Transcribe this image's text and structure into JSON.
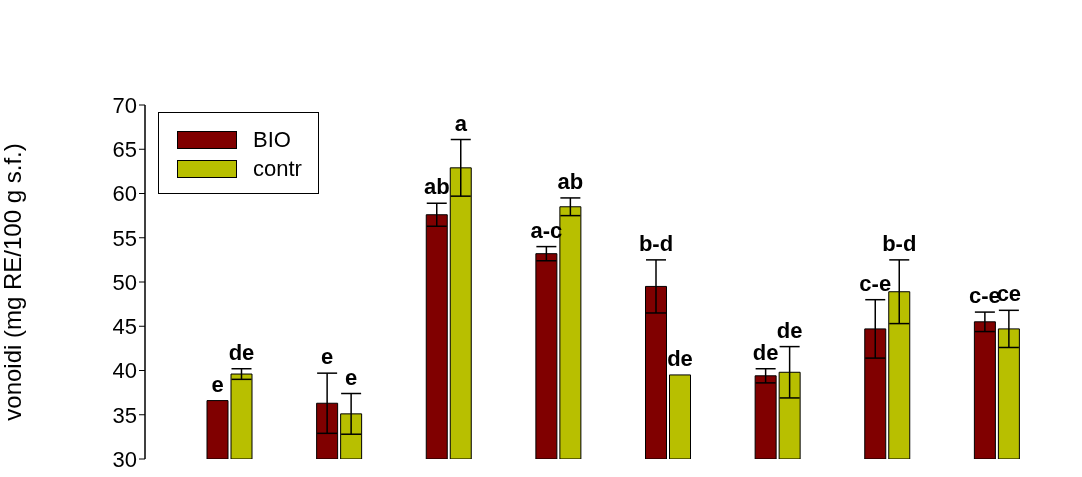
{
  "chart_data": {
    "type": "bar",
    "ylabel": "vonoidi (mg RE/100 g s.f.)",
    "categories": [
      null,
      null,
      null,
      null,
      null,
      null,
      null,
      null
    ],
    "series": [
      {
        "name": "BIO",
        "color": "#800000",
        "values": [
          36.6,
          36.3,
          57.6,
          53.2,
          49.5,
          39.4,
          44.7,
          45.5
        ],
        "errors": [
          null,
          3.4,
          1.3,
          0.8,
          3.0,
          0.8,
          3.3,
          1.1
        ]
      },
      {
        "name": "contr",
        "color": "#b8bf00",
        "values": [
          39.6,
          35.1,
          62.9,
          58.5,
          39.5,
          39.8,
          48.9,
          44.7
        ],
        "errors": [
          0.6,
          2.3,
          3.2,
          1.0,
          null,
          2.9,
          3.6,
          2.1
        ]
      }
    ],
    "annotations": [
      "e",
      "de",
      "e",
      "e",
      "ab",
      "a",
      "a-c",
      "ab",
      "b-d",
      "de",
      "de",
      "de",
      "c-e",
      "b-d",
      "c-e",
      "ce"
    ],
    "ylim": [
      30,
      70
    ],
    "yticks": [
      30,
      35,
      40,
      45,
      50,
      55,
      60,
      65,
      70
    ],
    "grid": false,
    "legend": "top left"
  }
}
